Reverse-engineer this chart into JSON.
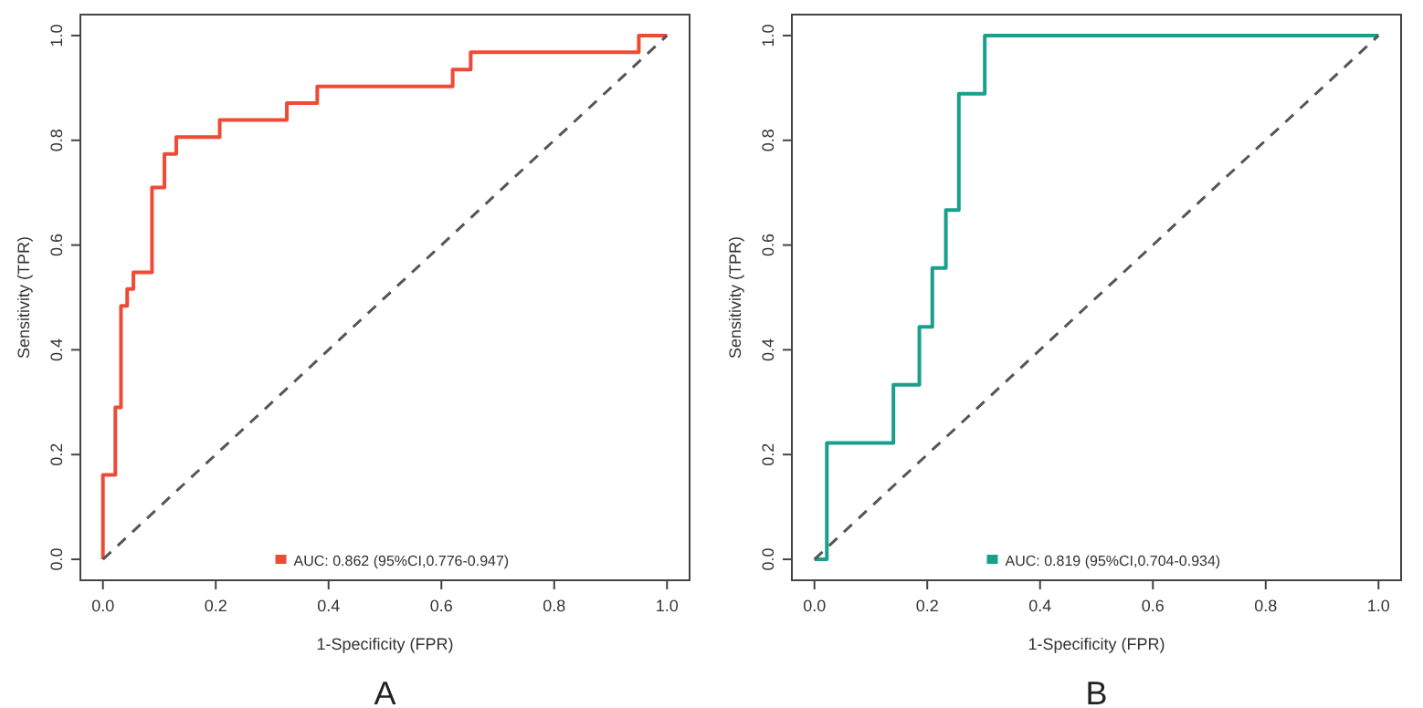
{
  "chart_data": [
    {
      "type": "line",
      "xlabel": "1-Specificity (FPR)",
      "ylabel": "Sensitivity (TPR)",
      "xlim": [
        -0.04,
        1.04
      ],
      "ylim": [
        -0.04,
        1.04
      ],
      "xticks": [
        {
          "value": 0,
          "label": "0.0"
        },
        {
          "value": 0.2,
          "label": "0.2"
        },
        {
          "value": 0.4,
          "label": "0.4"
        },
        {
          "value": 0.6,
          "label": "0.6"
        },
        {
          "value": 0.8,
          "label": "0.8"
        },
        {
          "value": 1,
          "label": "1.0"
        }
      ],
      "yticks": [
        {
          "value": 0,
          "label": "0.0"
        },
        {
          "value": 0.2,
          "label": "0.2"
        },
        {
          "value": 0.4,
          "label": "0.4"
        },
        {
          "value": 0.6,
          "label": "0.6"
        },
        {
          "value": 0.8,
          "label": "0.8"
        },
        {
          "value": 1,
          "label": "1.0"
        }
      ],
      "legend": "bottom",
      "grid": false,
      "annotations": [
        "A"
      ],
      "series": [
        {
          "name": "AUC: 0.862 (95%CI,0.776-0.947)",
          "color": "#f04a37",
          "line_style": "solid",
          "x": [
            0,
            0,
            0.022,
            0.022,
            0.032,
            0.032,
            0.043,
            0.043,
            0.054,
            0.054,
            0.087,
            0.087,
            0.109,
            0.109,
            0.13,
            0.13,
            0.207,
            0.207,
            0.326,
            0.326,
            0.38,
            0.38,
            0.62,
            0.62,
            0.652,
            0.652,
            0.95,
            0.95,
            1
          ],
          "values": [
            0,
            0.161,
            0.161,
            0.29,
            0.29,
            0.484,
            0.484,
            0.516,
            0.516,
            0.548,
            0.548,
            0.71,
            0.71,
            0.774,
            0.774,
            0.806,
            0.806,
            0.839,
            0.839,
            0.871,
            0.871,
            0.903,
            0.903,
            0.935,
            0.935,
            0.968,
            0.968,
            1,
            1
          ]
        },
        {
          "color": "#555555",
          "line_style": "dashed",
          "x": [
            0,
            1
          ],
          "values": [
            0,
            1
          ]
        }
      ]
    },
    {
      "type": "line",
      "xlabel": "1-Specificity (FPR)",
      "ylabel": "Sensitivity (TPR)",
      "xlim": [
        -0.04,
        1.04
      ],
      "ylim": [
        -0.04,
        1.04
      ],
      "xticks": [
        {
          "value": 0,
          "label": "0.0"
        },
        {
          "value": 0.2,
          "label": "0.2"
        },
        {
          "value": 0.4,
          "label": "0.4"
        },
        {
          "value": 0.6,
          "label": "0.6"
        },
        {
          "value": 0.8,
          "label": "0.8"
        },
        {
          "value": 1,
          "label": "1.0"
        }
      ],
      "yticks": [
        {
          "value": 0,
          "label": "0.0"
        },
        {
          "value": 0.2,
          "label": "0.2"
        },
        {
          "value": 0.4,
          "label": "0.4"
        },
        {
          "value": 0.6,
          "label": "0.6"
        },
        {
          "value": 0.8,
          "label": "0.8"
        },
        {
          "value": 1,
          "label": "1.0"
        }
      ],
      "legend": "bottom",
      "grid": false,
      "annotations": [
        "B"
      ],
      "series": [
        {
          "name": "AUC: 0.819 (95%CI,0.704-0.934)",
          "color": "#19a08a",
          "line_style": "solid",
          "x": [
            0,
            0.022,
            0.022,
            0.14,
            0.14,
            0.186,
            0.186,
            0.209,
            0.209,
            0.233,
            0.233,
            0.256,
            0.256,
            0.302,
            0.302,
            1
          ],
          "values": [
            0,
            0,
            0.222,
            0.222,
            0.333,
            0.333,
            0.444,
            0.444,
            0.556,
            0.556,
            0.667,
            0.667,
            0.889,
            0.889,
            1,
            1
          ]
        },
        {
          "color": "#555555",
          "line_style": "dashed",
          "x": [
            0,
            1
          ],
          "values": [
            0,
            1
          ]
        }
      ]
    }
  ]
}
